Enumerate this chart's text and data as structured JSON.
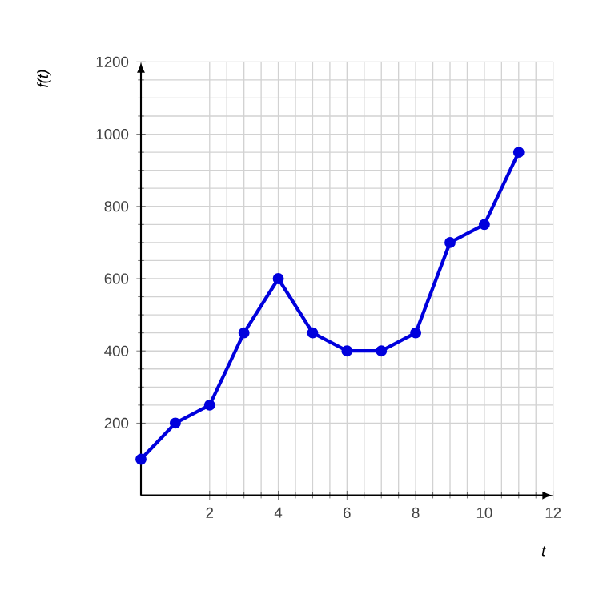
{
  "chart_data": {
    "type": "line",
    "xlabel": "t",
    "ylabel": "f(t)",
    "x": [
      0,
      1,
      2,
      3,
      4,
      5,
      6,
      7,
      8,
      9,
      10,
      11
    ],
    "series": [
      {
        "color": "#0000dd",
        "values": [
          100,
          200,
          250,
          450,
          600,
          450,
          400,
          400,
          450,
          700,
          750,
          950
        ]
      }
    ],
    "xlim": [
      0,
      12
    ],
    "ylim": [
      0,
      1200
    ],
    "xticks": [
      2,
      4,
      6,
      8,
      10,
      12
    ],
    "yticks": [
      200,
      400,
      600,
      800,
      1000,
      1200
    ],
    "grid": true,
    "marker": "circle",
    "line_style": "solid"
  }
}
